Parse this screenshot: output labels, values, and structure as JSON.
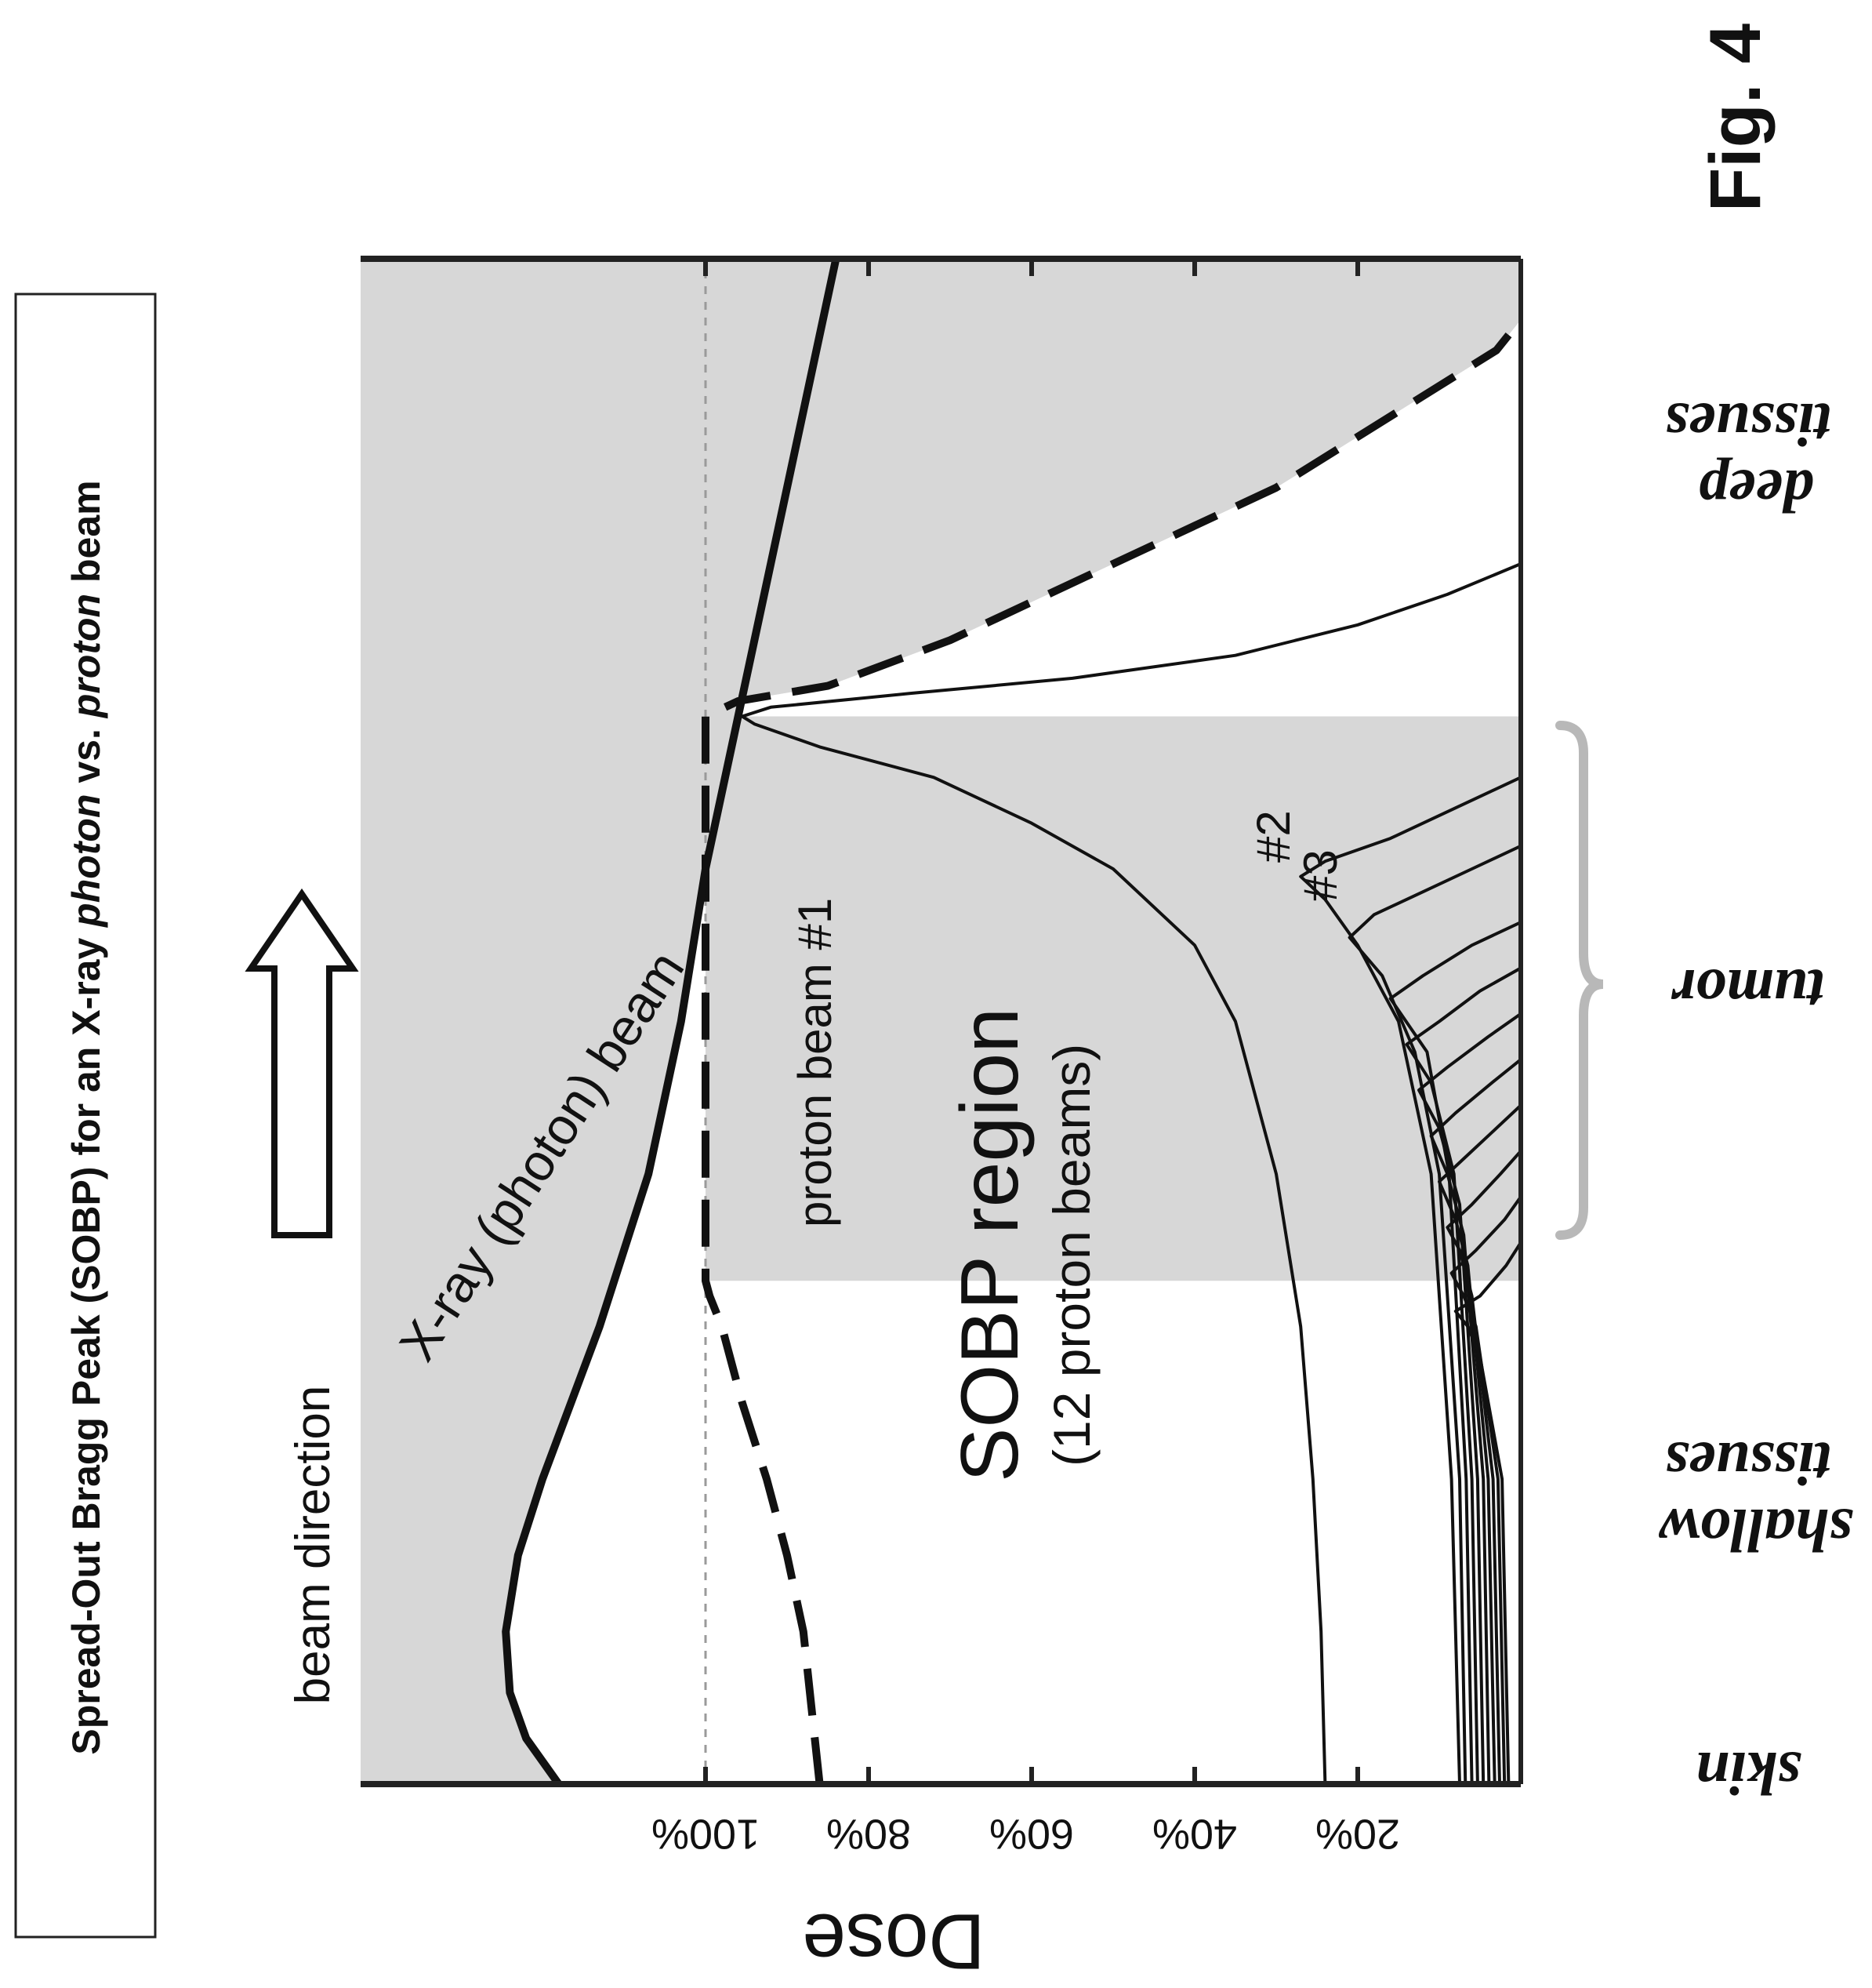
{
  "figure_label": "Fig. 4",
  "caption": "Spread-Out Bragg Peak (SOBP) for an X-ray photon vs. proton beam",
  "caption_parts": {
    "a": "Spread-Out Bragg Peak (SOBP) for an X-ray ",
    "b": "photon",
    "c": " vs. ",
    "d": "proton",
    "e": " beam"
  },
  "beam_direction_label": "beam direction",
  "annotations": {
    "xray": "X-ray (photon) beam",
    "proton1": "proton beam #1",
    "n2": "#2",
    "n3": "#3",
    "sobp": "SOBP region",
    "sobp_sub": "(12 proton beams)"
  },
  "regions": {
    "skin": "skin",
    "shallow_1": "shallow",
    "shallow_2": "tissues",
    "tumor": "tumor",
    "deep_1": "deep",
    "deep_2": "tissues"
  },
  "colors": {
    "ink": "#111111",
    "shade": "#d7d7d7",
    "guide": "#9a9a9a",
    "frame": "#222222"
  },
  "chart_data": {
    "type": "line",
    "orientation": "rotated 90 degrees: depth runs upward (skin at bottom), dose runs leftward",
    "ylabel": "Dose",
    "xlabel": "",
    "dose_ticks": [
      "100%",
      "80%",
      "60%",
      "40%",
      "20%"
    ],
    "dose_tick_values": [
      100,
      80,
      60,
      40,
      20
    ],
    "dose_range": [
      0,
      125
    ],
    "depth_range": [
      0,
      100
    ],
    "reference_line": {
      "dose": 100,
      "style": "dotted"
    },
    "sobp_region_depth": [
      33,
      70
    ],
    "tumor_depth": [
      33,
      70
    ],
    "series": [
      {
        "name": "X-ray (photon) beam",
        "style": "solid-thick",
        "points": [
          [
            0,
            118
          ],
          [
            3,
            122
          ],
          [
            6,
            124
          ],
          [
            10,
            124.5
          ],
          [
            15,
            123
          ],
          [
            20,
            120
          ],
          [
            30,
            113
          ],
          [
            40,
            107
          ],
          [
            50,
            103
          ],
          [
            60,
            100
          ],
          [
            70,
            96
          ],
          [
            80,
            92
          ],
          [
            90,
            88
          ],
          [
            100,
            84
          ]
        ]
      },
      {
        "name": "SOBP (12 proton beams)",
        "style": "dashed-thick",
        "points": [
          [
            0,
            86
          ],
          [
            5,
            87
          ],
          [
            10,
            88
          ],
          [
            15,
            90
          ],
          [
            20,
            92.5
          ],
          [
            25,
            95.5
          ],
          [
            30,
            98
          ],
          [
            32,
            99.5
          ],
          [
            33,
            100
          ],
          [
            40,
            100
          ],
          [
            50,
            100
          ],
          [
            60,
            100
          ],
          [
            69,
            100
          ],
          [
            70,
            100
          ],
          [
            71,
            96
          ],
          [
            72,
            85
          ],
          [
            75,
            70
          ],
          [
            80,
            50
          ],
          [
            85,
            30
          ],
          [
            90,
            15
          ],
          [
            94,
            3
          ],
          [
            96,
            0
          ]
        ]
      },
      {
        "name": "proton beam #1",
        "style": "solid-thin",
        "points": [
          [
            0,
            24
          ],
          [
            10,
            24.5
          ],
          [
            20,
            25.5
          ],
          [
            30,
            27
          ],
          [
            40,
            30
          ],
          [
            50,
            35
          ],
          [
            55,
            40
          ],
          [
            60,
            50
          ],
          [
            63,
            60
          ],
          [
            66,
            72
          ],
          [
            68,
            86
          ],
          [
            69.5,
            94
          ],
          [
            70,
            95.5
          ],
          [
            70.6,
            92
          ],
          [
            71.5,
            75
          ],
          [
            72.5,
            55
          ],
          [
            74,
            35
          ],
          [
            76,
            20
          ],
          [
            78,
            9
          ],
          [
            80,
            0
          ]
        ]
      },
      {
        "name": "#2",
        "style": "solid-thin",
        "points": [
          [
            0,
            7.5
          ],
          [
            20,
            8.5
          ],
          [
            40,
            11
          ],
          [
            50,
            15
          ],
          [
            55,
            20
          ],
          [
            58,
            24
          ],
          [
            59.5,
            27
          ],
          [
            60.5,
            24
          ],
          [
            62,
            16
          ],
          [
            64,
            8
          ],
          [
            66,
            0
          ]
        ]
      },
      {
        "name": "#3",
        "style": "solid-thin",
        "points": [
          [
            0,
            6.8
          ],
          [
            20,
            7.5
          ],
          [
            40,
            10
          ],
          [
            48,
            13
          ],
          [
            53,
            17
          ],
          [
            55.5,
            21
          ],
          [
            57,
            18
          ],
          [
            58.5,
            12
          ],
          [
            60,
            6
          ],
          [
            61.5,
            0
          ]
        ]
      },
      {
        "name": "",
        "style": "solid-thin",
        "points": [
          [
            0,
            6.0
          ],
          [
            20,
            6.7
          ],
          [
            40,
            8.8
          ],
          [
            48,
            11.5
          ],
          [
            51.5,
            16
          ],
          [
            53,
            12
          ],
          [
            55,
            6
          ],
          [
            56.5,
            0
          ]
        ]
      },
      {
        "name": "",
        "style": "solid-thin",
        "points": [
          [
            0,
            5.3
          ],
          [
            20,
            6.0
          ],
          [
            40,
            8.2
          ],
          [
            46,
            11
          ],
          [
            48.5,
            14
          ],
          [
            50,
            10
          ],
          [
            52,
            5
          ],
          [
            53.5,
            0
          ]
        ]
      },
      {
        "name": "",
        "style": "solid-thin",
        "points": [
          [
            0,
            4.6
          ],
          [
            20,
            5.3
          ],
          [
            38,
            7.5
          ],
          [
            43,
            10
          ],
          [
            45.5,
            12.5
          ],
          [
            47,
            9
          ],
          [
            49,
            4
          ],
          [
            50.5,
            0
          ]
        ]
      },
      {
        "name": "",
        "style": "solid-thin",
        "points": [
          [
            0,
            3.9
          ],
          [
            20,
            4.6
          ],
          [
            36,
            7
          ],
          [
            40,
            9
          ],
          [
            42.5,
            11
          ],
          [
            44,
            8
          ],
          [
            46,
            3.5
          ],
          [
            47.5,
            0
          ]
        ]
      },
      {
        "name": "",
        "style": "solid-thin",
        "points": [
          [
            0,
            3.2
          ],
          [
            20,
            4.0
          ],
          [
            34,
            6.5
          ],
          [
            37,
            8
          ],
          [
            39.5,
            10
          ],
          [
            41,
            7
          ],
          [
            43,
            3
          ],
          [
            44.5,
            0
          ]
        ]
      },
      {
        "name": "",
        "style": "solid-thin",
        "points": [
          [
            0,
            2.6
          ],
          [
            20,
            3.4
          ],
          [
            32,
            6
          ],
          [
            35,
            7.5
          ],
          [
            36.5,
            9
          ],
          [
            38,
            6
          ],
          [
            40,
            2.5
          ],
          [
            41.5,
            0
          ]
        ]
      },
      {
        "name": "",
        "style": "solid-thin",
        "points": [
          [
            0,
            2.0
          ],
          [
            20,
            2.8
          ],
          [
            30,
            5.5
          ],
          [
            32,
            7
          ],
          [
            33.5,
            8.5
          ],
          [
            35,
            5.5
          ],
          [
            37,
            2
          ],
          [
            38.5,
            0
          ]
        ]
      },
      {
        "name": "",
        "style": "solid-thin",
        "points": [
          [
            0,
            1.5
          ],
          [
            20,
            2.3
          ],
          [
            28,
            5
          ],
          [
            30,
            6.5
          ],
          [
            31,
            8
          ],
          [
            32,
            5
          ],
          [
            34,
            1.8
          ],
          [
            35.5,
            0
          ]
        ]
      }
    ]
  }
}
